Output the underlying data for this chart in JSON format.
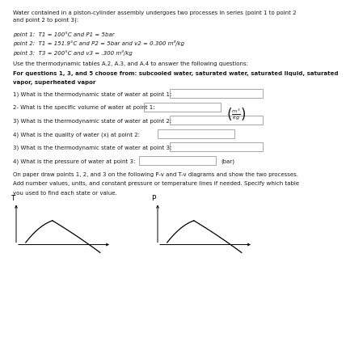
{
  "bg_color": "#ffffff",
  "text_color": "#1a1a1a",
  "line_color": "#000000",
  "box_color": "#ffffff",
  "box_edge": "#999999",
  "title_text": "Water contained in a piston-cylinder assembly undergoes two processes in series (point 1 to point 2\nand point 2 to point 3):",
  "point1_text": "point 1:  T1 = 100°C and P1 = 5bar",
  "point2_text": "point 2:  T1 = 151.9°C and P2 = 5bar and v2 = 0.300 m³/kg",
  "point3_text": "point 3:  T3 = 200°C and v3 = .300 m³/kg",
  "use_tables_text": "Use the thermodynamic tables A.2, A.3, and A.4 to answer the following questions:",
  "for_questions_line1": "For questions 1, 3, and 5 choose from: subcooled water, saturated water, saturated liquid, saturated",
  "for_questions_line2": "vapor, superheated vapor",
  "q1": "1) What is the thermodynamic state of water at point 1:",
  "q2": "2- What is the specific volume of water at point 1:",
  "q2_unit": "(㎥\nkg)",
  "q3": "3) What is the thermodynamic state of water at point 2:",
  "q4": "4) What is the quality of water (x) at point 2:",
  "q5": "3) What is the thermodynamic state of water at point 3:",
  "q6": "4) What is the pressure of water at point 3:",
  "q6_unit": "(bar)",
  "diagram_text_line1": "On paper draw points 1, 2, and 3 on the following P-v and T-v diagrams and show the two processes.",
  "diagram_text_line2": "Add number values, units, and constant pressure or temperature lines if needed. Specify which table",
  "diagram_text_line3": "you used to find each state or value.",
  "Tlabel": "T",
  "Plabel": "P"
}
